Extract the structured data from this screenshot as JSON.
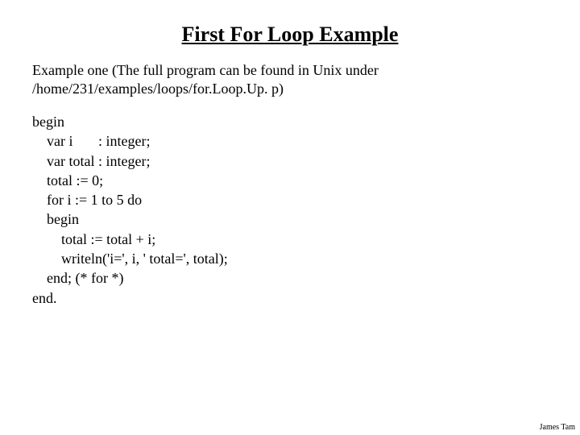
{
  "title": "First For Loop Example",
  "intro": "Example  one (The full program can be found in Unix under /home/231/examples/loops/for.Loop.Up. p)",
  "code_lines": [
    "begin",
    "    var i       : integer;",
    "    var total : integer;",
    "    total := 0;",
    "    for i := 1 to 5 do",
    "    begin",
    "        total := total + i;",
    "        writeln('i=', i, ' total=', total);",
    "    end; (* for *)",
    "end."
  ],
  "footer": "James Tam",
  "colors": {
    "background": "#ffffff",
    "text": "#000000"
  },
  "typography": {
    "title_fontsize": 26,
    "body_fontsize": 18,
    "footer_fontsize": 10,
    "font_family": "Times New Roman"
  }
}
